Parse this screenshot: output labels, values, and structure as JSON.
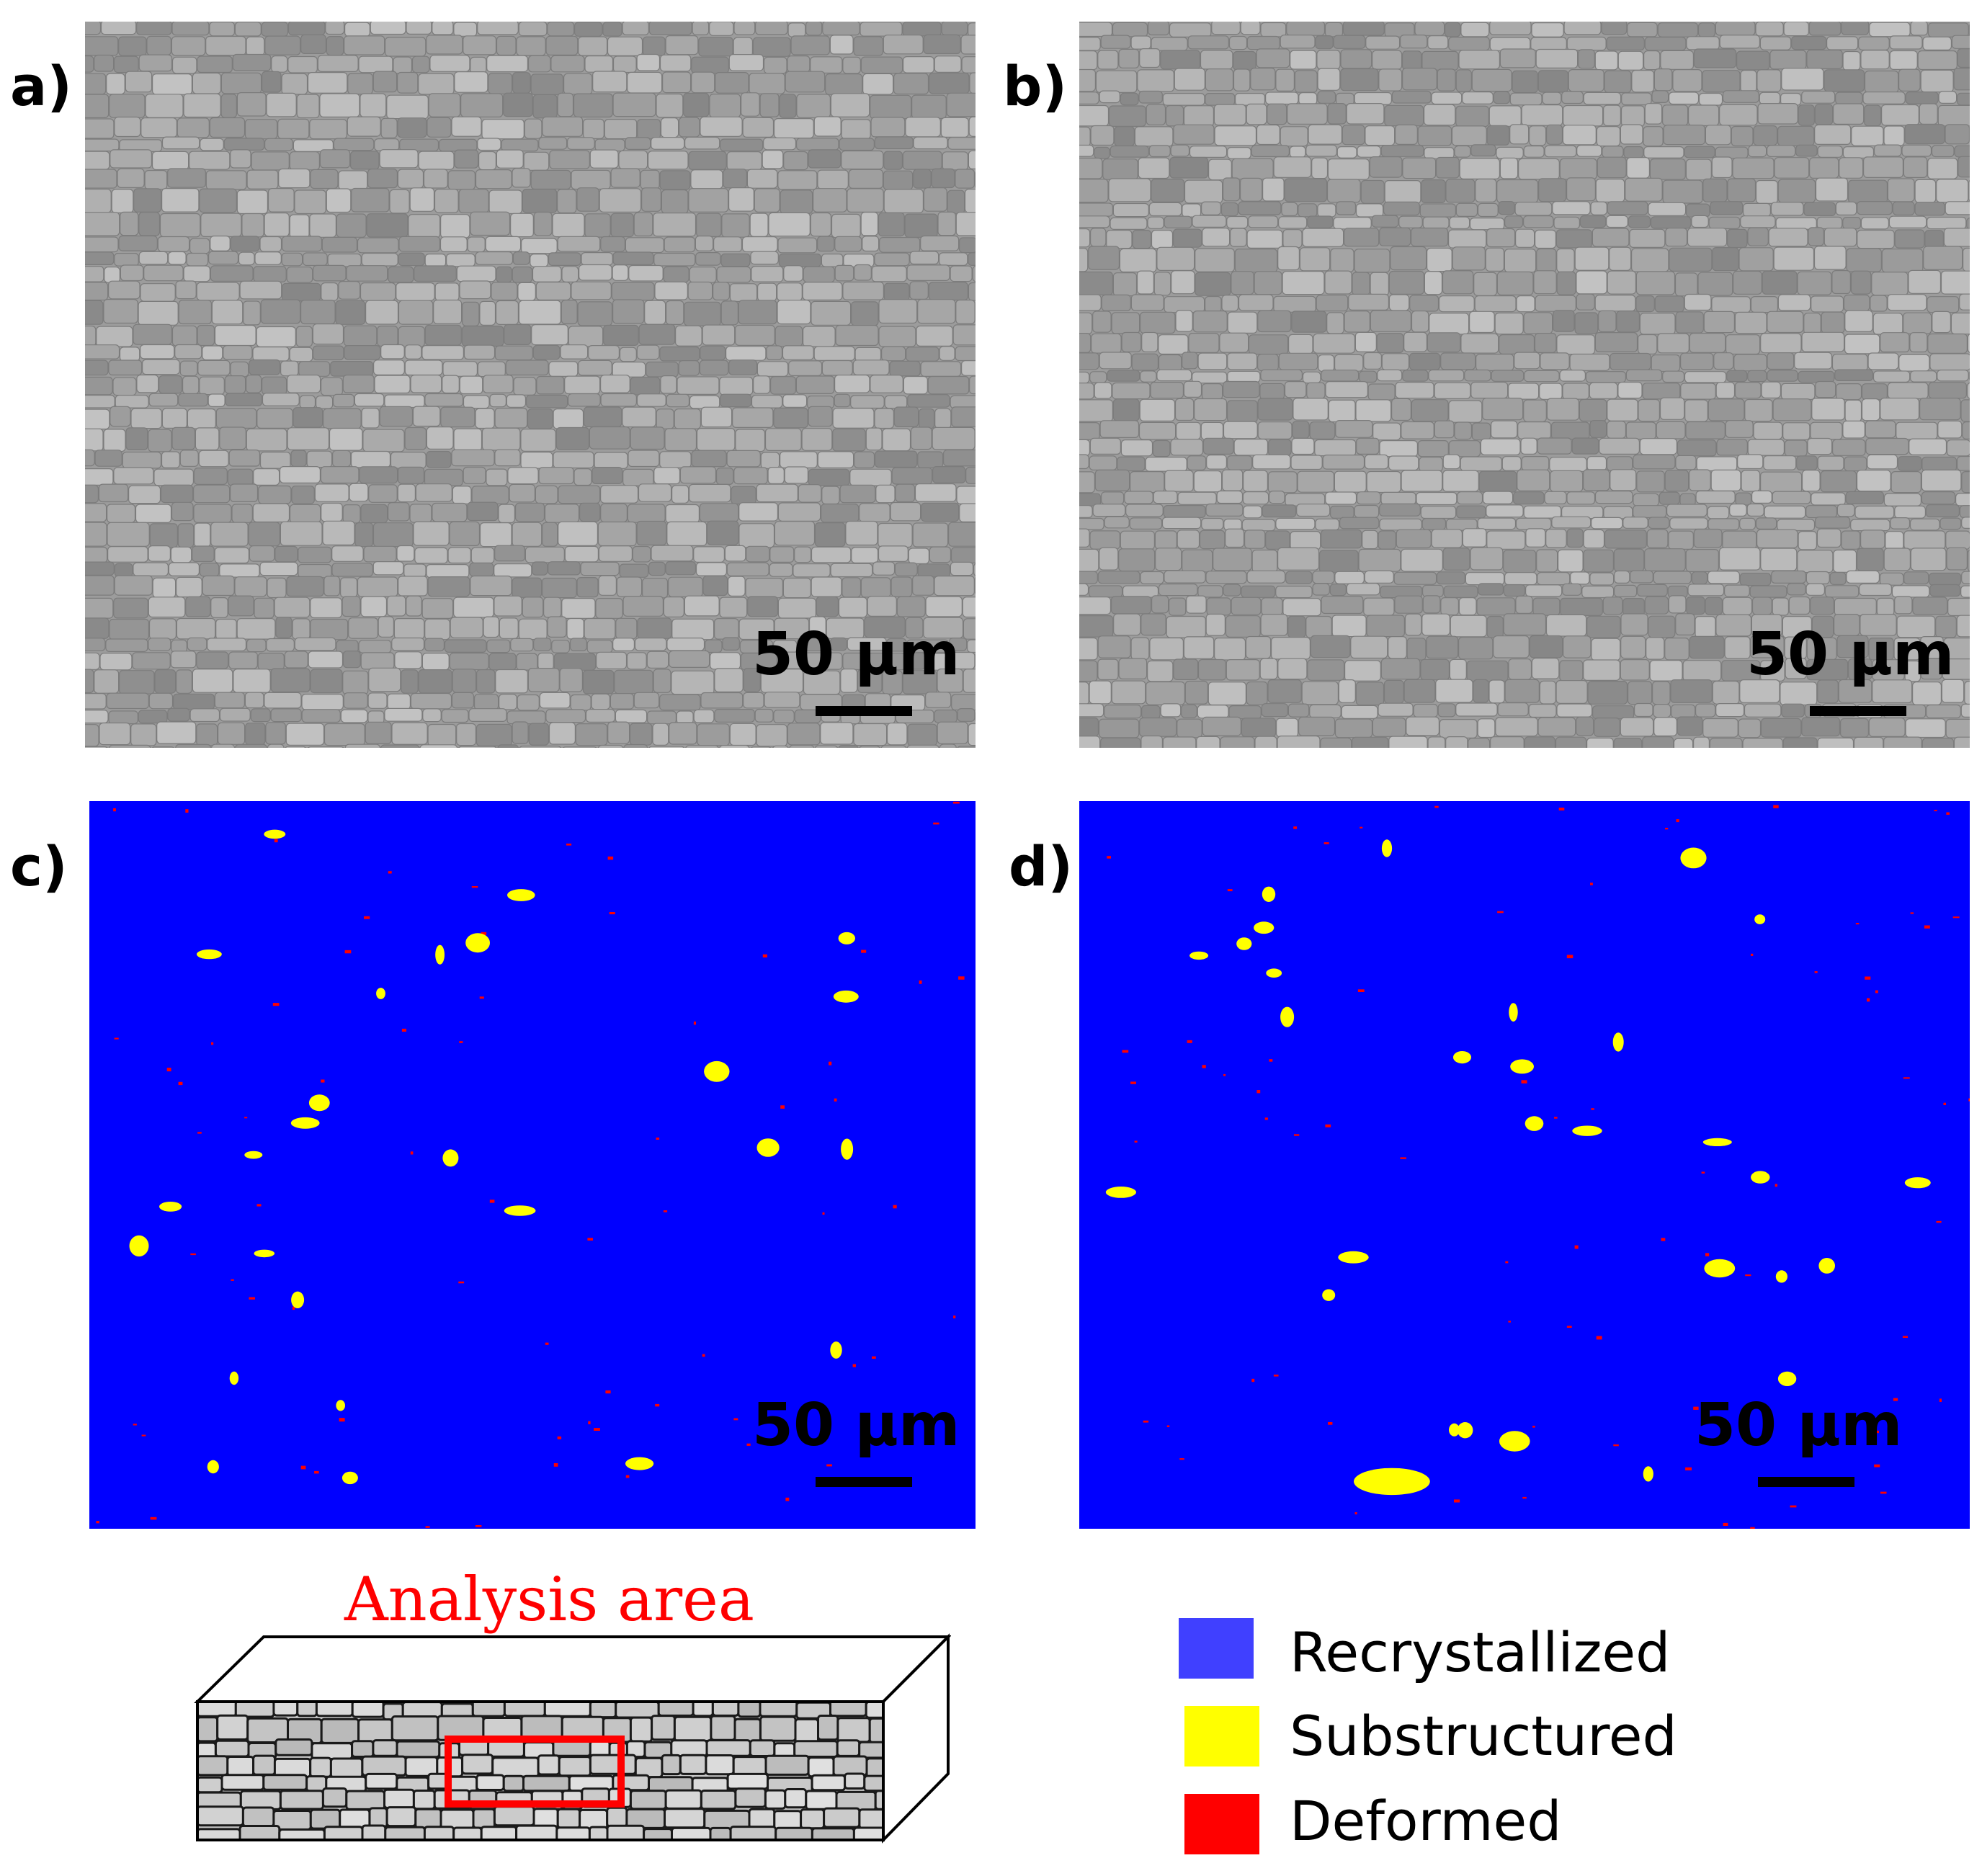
{
  "figure": {
    "panels": [
      {
        "id": "a",
        "label": "a)",
        "kind": "grain-map",
        "scale_bar": "50 µm"
      },
      {
        "id": "b",
        "label": "b)",
        "kind": "grain-map",
        "scale_bar": "50 µm"
      },
      {
        "id": "c",
        "label": "c)",
        "kind": "recrystallization-map",
        "scale_bar": "50 µm"
      },
      {
        "id": "d",
        "label": "d)",
        "kind": "recrystallization-map",
        "scale_bar": "50 µm"
      }
    ],
    "schematic": {
      "title": "Analysis area",
      "title_color": "#ff0000",
      "box_color": "#ff0000"
    },
    "legend": {
      "items": [
        {
          "label": "Recrystallized",
          "color": "#4040ff"
        },
        {
          "label": "Substructured",
          "color": "#ffff00"
        },
        {
          "label": "Deformed",
          "color": "#ff0000"
        }
      ]
    },
    "colors": {
      "map_background": "#0000ff",
      "substructured": "#ffff00",
      "deformed": "#ff0000"
    }
  }
}
